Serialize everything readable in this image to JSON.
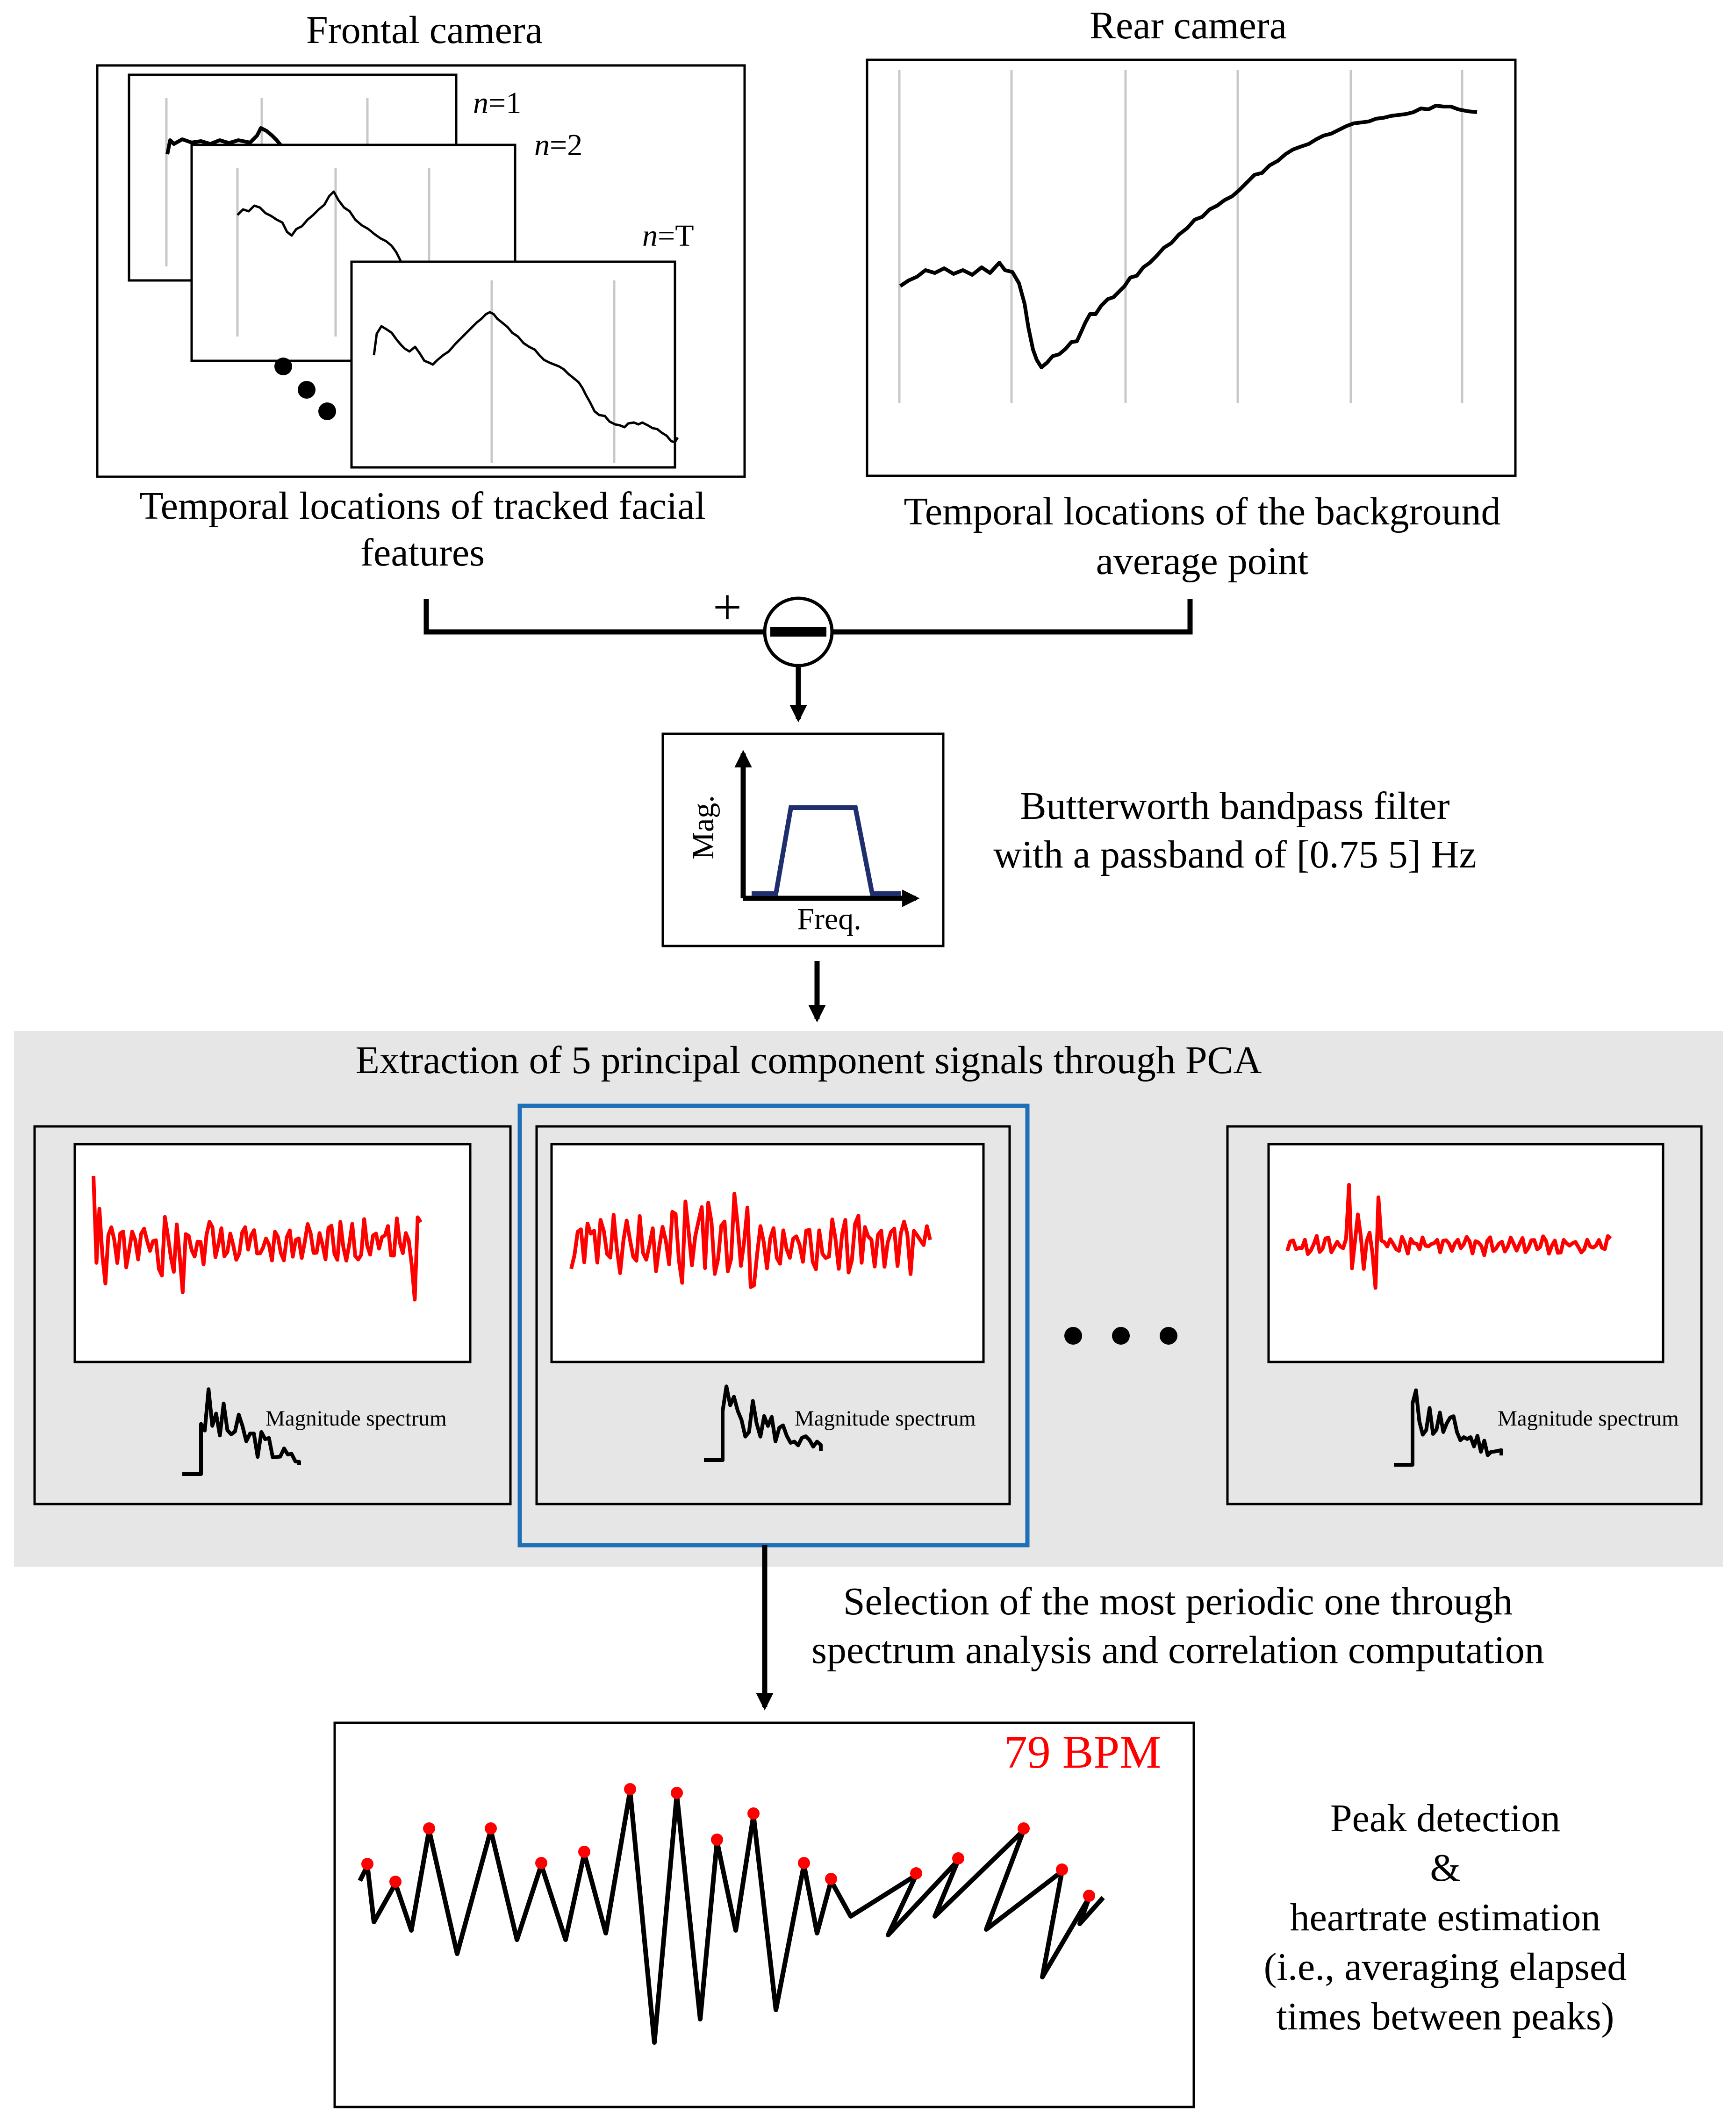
{
  "frontal": {
    "title": "Frontal camera",
    "frame_labels": [
      {
        "italic": "n",
        "rest": "=1"
      },
      {
        "italic": "n",
        "rest": "=2"
      },
      {
        "italic": "n",
        "rest": "=T"
      }
    ],
    "caption_line1": "Temporal locations of tracked facial",
    "caption_line2": "features"
  },
  "rear": {
    "title": "Rear camera",
    "caption_line1": "Temporal locations of the background",
    "caption_line2": "average point"
  },
  "subtractor": {
    "plus": "+",
    "operator": "−"
  },
  "filter": {
    "y_label": "Mag.",
    "x_label": "Freq.",
    "caption_line1": "Butterworth bandpass filter",
    "caption_line2": "with a passband of [0.75 5] Hz",
    "colors": {
      "passband": "#1f2f6e"
    }
  },
  "pca": {
    "title": "Extraction of 5 principal component signals through PCA",
    "spectrum_label": "Magnitude spectrum",
    "colors": {
      "panel": "#e6e6e6",
      "selection": "#1f6fb8",
      "signal": "#ff0000"
    }
  },
  "selection": {
    "caption_line1": "Selection of the most periodic one through",
    "caption_line2": "spectrum analysis and correlation computation"
  },
  "result": {
    "bpm": "79 BPM",
    "caption_lines": [
      "Peak detection",
      "&",
      "heartrate estimation",
      "(i.e., averaging elapsed",
      "times between peaks)"
    ],
    "colors": {
      "bpm": "#ff0000",
      "peaks": "#ff0000"
    }
  }
}
